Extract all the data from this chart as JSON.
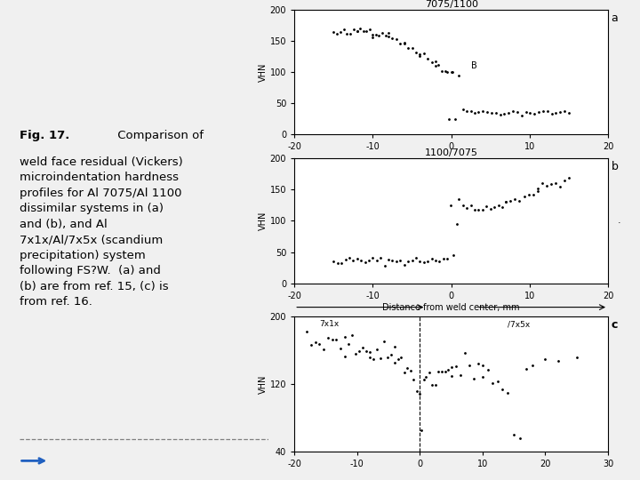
{
  "title_a": "7075/1100",
  "title_b": "1100/7075",
  "label_a": "a",
  "label_b": "b",
  "label_c": "c",
  "ylabel": "VHN",
  "xlabel_middle": "Distance from weld center, mm",
  "annotation_b_label": "B",
  "bg_color": "#f0f0f0",
  "plot_area_color": "#ffffff",
  "xlim_ab": [
    -20,
    20
  ],
  "ylim_ab": [
    0,
    200
  ],
  "yticks_ab": [
    0,
    50,
    100,
    150,
    200
  ],
  "xticks_ab": [
    -20,
    -10,
    0,
    10,
    20
  ],
  "xlim_c": [
    -20,
    30
  ],
  "ylim_c": [
    40,
    200
  ],
  "yticks_c": [
    40,
    120,
    200
  ],
  "xticks_c": [
    -20,
    -10,
    0,
    10,
    20,
    30
  ],
  "label_7x1x": "7x1x",
  "label_7x5x": "/7x5x",
  "caption_bold": "Fig. 17.",
  "caption_normal": "  Comparison of weld face residual (Vickers) microindentation hardness profiles for Al 7075/Al 1100 dissimilar systems in (a) and (b), and Al 7x1x/Al/7x5x (scandium precipitation) system following FS?W.  (a) and (b) are from ref. 15, (c) is from ref. 16."
}
